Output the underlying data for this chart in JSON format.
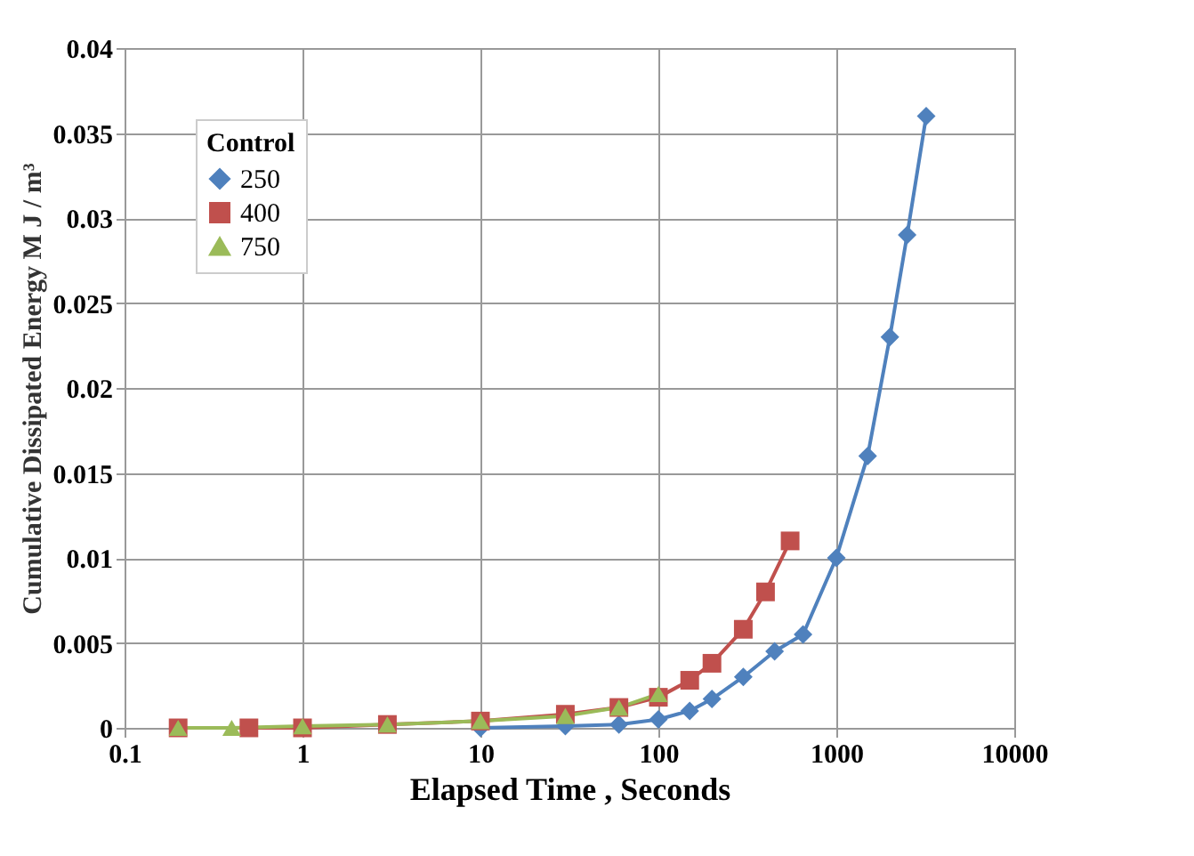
{
  "chart_data": {
    "type": "line",
    "xlabel": "Elapsed Time , Seconds",
    "ylabel": "Cumulative Dissipated Energy  M J / m³",
    "legend_title": "Control",
    "legend": "top left",
    "log": "x",
    "grid": true,
    "xlim": [
      0.1,
      10000
    ],
    "xticks": [
      0.1,
      1,
      10,
      100,
      1000,
      10000
    ],
    "ylim": [
      0,
      0.04
    ],
    "yticks": [
      0,
      0.005,
      0.01,
      0.015,
      0.02,
      0.025,
      0.03,
      0.035,
      0.04
    ],
    "series": [
      {
        "name": "250",
        "color": "#4f81bd",
        "marker": "diamond",
        "x": [
          10,
          30,
          60,
          100,
          150,
          200,
          300,
          450,
          650,
          1000,
          1500,
          2000,
          2500,
          3200
        ],
        "values": [
          0,
          0.0001,
          0.0002,
          0.0005,
          0.001,
          0.0017,
          0.003,
          0.0045,
          0.0055,
          0.01,
          0.016,
          0.023,
          0.029,
          0.036
        ]
      },
      {
        "name": "400",
        "color": "#c0504d",
        "marker": "square",
        "x": [
          0.2,
          0.5,
          1,
          3,
          10,
          30,
          60,
          100,
          150,
          200,
          300,
          400,
          550
        ],
        "values": [
          0,
          0,
          0,
          0.0002,
          0.0004,
          0.0008,
          0.0012,
          0.0018,
          0.0028,
          0.0038,
          0.0058,
          0.008,
          0.011
        ]
      },
      {
        "name": "750",
        "color": "#9bbb59",
        "marker": "triangle",
        "x": [
          0.2,
          0.4,
          1,
          3,
          10,
          30,
          60,
          100
        ],
        "values": [
          0,
          0,
          0.0001,
          0.0002,
          0.0004,
          0.0007,
          0.0012,
          0.002
        ]
      }
    ]
  }
}
